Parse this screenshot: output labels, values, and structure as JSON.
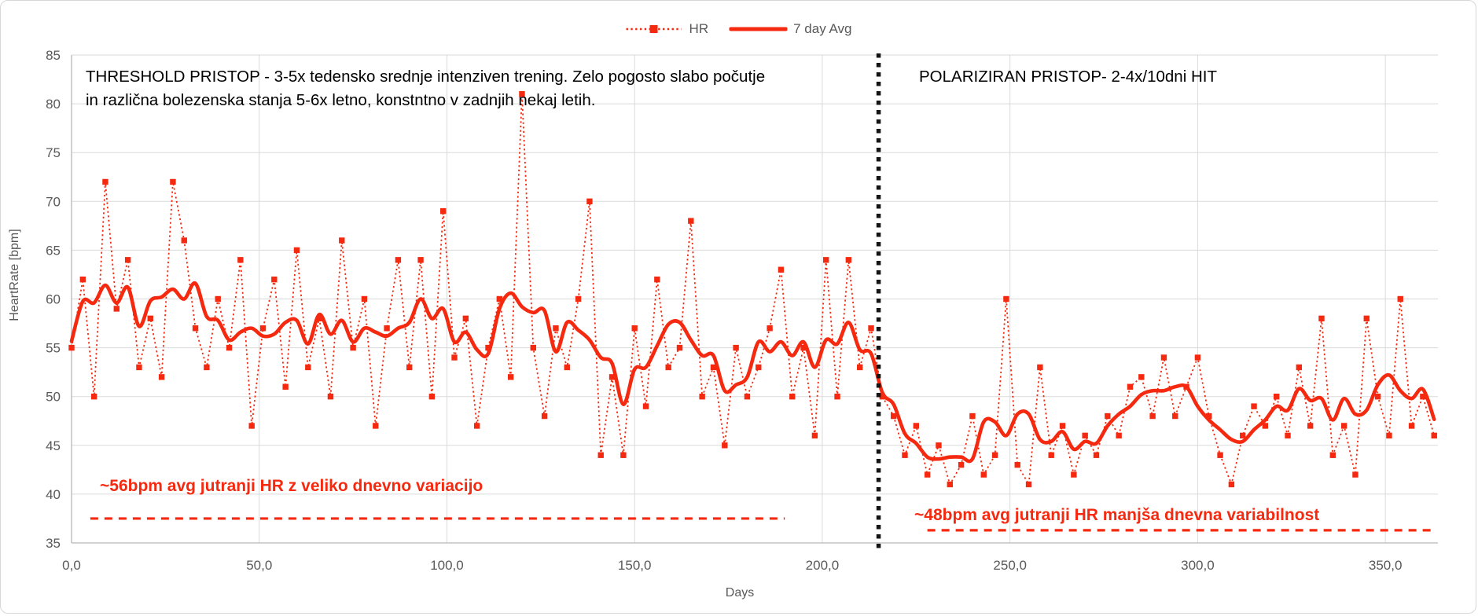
{
  "legend": {
    "hr_label": "HR",
    "avg_label": "7 day Avg"
  },
  "annotations": {
    "threshold_line1": "THRESHOLD PRISTOP - 3-5x tedensko srednje intenziven trening.  Zelo pogosto slabo počutje",
    "threshold_line2": "in različna bolezenska stanja 5-6x letno, konstntno v zadnjih nekaj letih.",
    "polarized": "POLARIZIRAN PRISTOP- 2-4x/10dni HIT",
    "avg56": "~56bpm avg jutranji HR z veliko dnevno variacijo",
    "avg48": "~48bpm avg jutranji HR manjša dnevna variabilnost"
  },
  "colors": {
    "series_red": "#f4290f",
    "grid": "#dadada",
    "axis_line": "#b7b7b7",
    "axis_text": "#595959",
    "divider_black": "#141414"
  },
  "chart_data": {
    "type": "line",
    "title": "",
    "xlabel": "Days",
    "ylabel": "HeartRate [bpm]",
    "xlim": [
      0,
      364
    ],
    "ylim": [
      35,
      85
    ],
    "grid": true,
    "legend_position": "top-center",
    "x_ticks": [
      0,
      50,
      100,
      150,
      200,
      250,
      300,
      350
    ],
    "x_tick_labels": [
      "0,0",
      "50,0",
      "100,0",
      "150,0",
      "200,0",
      "250,0",
      "300,0",
      "350,0"
    ],
    "y_ticks": [
      35,
      40,
      45,
      50,
      55,
      60,
      65,
      70,
      75,
      80,
      85
    ],
    "y_tick_labels": [
      "35",
      "40",
      "45",
      "50",
      "55",
      "60",
      "65",
      "70",
      "75",
      "80",
      "85"
    ],
    "series": [
      {
        "name": "HR",
        "style": "dotted-with-square-markers",
        "x_start": 0,
        "x_step": 3,
        "values": [
          55,
          62,
          50,
          72,
          59,
          64,
          53,
          58,
          52,
          72,
          66,
          57,
          53,
          60,
          55,
          64,
          47,
          57,
          62,
          51,
          65,
          53,
          58,
          50,
          66,
          55,
          60,
          47,
          57,
          64,
          53,
          64,
          50,
          69,
          54,
          58,
          47,
          55,
          60,
          52,
          81,
          55,
          48,
          57,
          53,
          60,
          70,
          44,
          52,
          44,
          57,
          49,
          62,
          53,
          55,
          68,
          50,
          53,
          45,
          55,
          50,
          53,
          57,
          63,
          50,
          55,
          46,
          64,
          50,
          64,
          53,
          57,
          50,
          48,
          44,
          47,
          42,
          45,
          41,
          43,
          48,
          42,
          44,
          60,
          43,
          41,
          53,
          44,
          47,
          42,
          46,
          44,
          48,
          46,
          51,
          52,
          48,
          54,
          48,
          51,
          54,
          48,
          44,
          41,
          46,
          49,
          47,
          50,
          46,
          53,
          47,
          58,
          44,
          47,
          42,
          58,
          50,
          46,
          60,
          47,
          50,
          46
        ]
      },
      {
        "name": "7 day Avg",
        "style": "solid-thick",
        "derived": "7-day rolling average of HR series"
      }
    ],
    "phase_divider_day": 215,
    "reference_lines": [
      {
        "label": "~56bpm level",
        "bpm": 37.5,
        "from_day": 5,
        "to_day": 190
      },
      {
        "label": "~48bpm level",
        "bpm": 36.3,
        "from_day": 228,
        "to_day": 363
      }
    ]
  }
}
